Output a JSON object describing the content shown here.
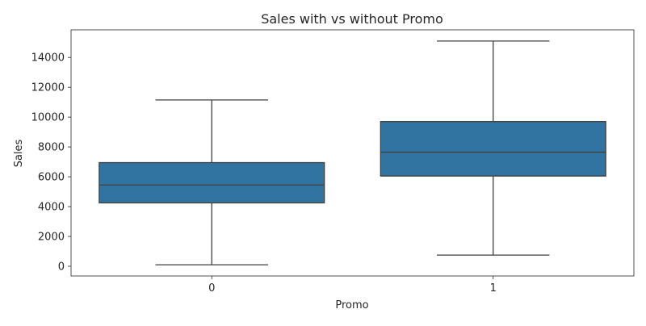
{
  "chart_data": {
    "type": "box",
    "title": "Sales with vs without Promo",
    "xlabel": "Promo",
    "ylabel": "Sales",
    "categories": [
      "0",
      "1"
    ],
    "boxes": [
      {
        "category": "0",
        "whisker_low": 100,
        "q1": 4250,
        "median": 5450,
        "q3": 6950,
        "whisker_high": 11150
      },
      {
        "category": "1",
        "whisker_low": 750,
        "q1": 6050,
        "median": 7650,
        "q3": 9700,
        "whisker_high": 15100
      }
    ],
    "ylim": [
      -650,
      15850
    ],
    "yticks": [
      0,
      2000,
      4000,
      6000,
      8000,
      10000,
      12000,
      14000
    ],
    "grid": false,
    "box_color": "#3274a1",
    "line_color": "#3f3f3f"
  }
}
